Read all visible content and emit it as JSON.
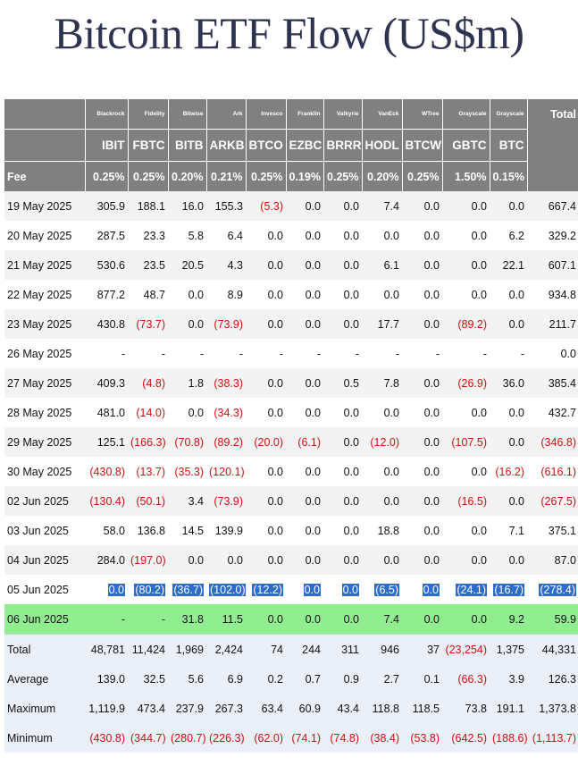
{
  "page_title": "Bitcoin ETF Flow (US$m)",
  "table": {
    "issuers": [
      "Blackrock",
      "Fidelity",
      "Bitwise",
      "Ark",
      "Invesco",
      "Franklin",
      "Valkyrie",
      "VanEck",
      "WTree",
      "Grayscale",
      "Grayscale"
    ],
    "total_label": "Total",
    "tickers": [
      "IBIT",
      "FBTC",
      "BITB",
      "ARKB",
      "BTCO",
      "EZBC",
      "BRRR",
      "HODL",
      "BTCW",
      "GBTC",
      "BTC"
    ],
    "fee_label": "Fee",
    "fees": [
      "0.25%",
      "0.25%",
      "0.20%",
      "0.21%",
      "0.25%",
      "0.19%",
      "0.25%",
      "0.20%",
      "0.25%",
      "1.50%",
      "0.15%"
    ],
    "rows": [
      {
        "date": "19 May 2025",
        "values": [
          "305.9",
          "188.1",
          "16.0",
          "155.3",
          "(5.3)",
          "0.0",
          "0.0",
          "7.4",
          "0.0",
          "0.0",
          "0.0"
        ],
        "total": "667.4"
      },
      {
        "date": "20 May 2025",
        "values": [
          "287.5",
          "23.3",
          "5.8",
          "6.4",
          "0.0",
          "0.0",
          "0.0",
          "0.0",
          "0.0",
          "0.0",
          "6.2"
        ],
        "total": "329.2"
      },
      {
        "date": "21 May 2025",
        "values": [
          "530.6",
          "23.5",
          "20.5",
          "4.3",
          "0.0",
          "0.0",
          "0.0",
          "6.1",
          "0.0",
          "0.0",
          "22.1"
        ],
        "total": "607.1"
      },
      {
        "date": "22 May 2025",
        "values": [
          "877.2",
          "48.7",
          "0.0",
          "8.9",
          "0.0",
          "0.0",
          "0.0",
          "0.0",
          "0.0",
          "0.0",
          "0.0"
        ],
        "total": "934.8"
      },
      {
        "date": "23 May 2025",
        "values": [
          "430.8",
          "(73.7)",
          "0.0",
          "(73.9)",
          "0.0",
          "0.0",
          "0.0",
          "17.7",
          "0.0",
          "(89.2)",
          "0.0"
        ],
        "total": "211.7"
      },
      {
        "date": "26 May 2025",
        "values": [
          "-",
          "-",
          "-",
          "-",
          "-",
          "-",
          "-",
          "-",
          "-",
          "-",
          "-"
        ],
        "total": "0.0"
      },
      {
        "date": "27 May 2025",
        "values": [
          "409.3",
          "(4.8)",
          "1.8",
          "(38.3)",
          "0.0",
          "0.0",
          "0.5",
          "7.8",
          "0.0",
          "(26.9)",
          "36.0"
        ],
        "total": "385.4"
      },
      {
        "date": "28 May 2025",
        "values": [
          "481.0",
          "(14.0)",
          "0.0",
          "(34.3)",
          "0.0",
          "0.0",
          "0.0",
          "0.0",
          "0.0",
          "0.0",
          "0.0"
        ],
        "total": "432.7"
      },
      {
        "date": "29 May 2025",
        "values": [
          "125.1",
          "(166.3)",
          "(70.8)",
          "(89.2)",
          "(20.0)",
          "(6.1)",
          "0.0",
          "(12.0)",
          "0.0",
          "(107.5)",
          "0.0"
        ],
        "total": "(346.8)"
      },
      {
        "date": "30 May 2025",
        "values": [
          "(430.8)",
          "(13.7)",
          "(35.3)",
          "(120.1)",
          "0.0",
          "0.0",
          "0.0",
          "0.0",
          "0.0",
          "0.0",
          "(16.2)"
        ],
        "total": "(616.1)"
      },
      {
        "date": "02 Jun 2025",
        "values": [
          "(130.4)",
          "(50.1)",
          "3.4",
          "(73.9)",
          "0.0",
          "0.0",
          "0.0",
          "0.0",
          "0.0",
          "(16.5)",
          "0.0"
        ],
        "total": "(267.5)"
      },
      {
        "date": "03 Jun 2025",
        "values": [
          "58.0",
          "136.8",
          "14.5",
          "139.9",
          "0.0",
          "0.0",
          "0.0",
          "18.8",
          "0.0",
          "0.0",
          "7.1"
        ],
        "total": "375.1"
      },
      {
        "date": "04 Jun 2025",
        "values": [
          "284.0",
          "(197.0)",
          "0.0",
          "0.0",
          "0.0",
          "0.0",
          "0.0",
          "0.0",
          "0.0",
          "0.0",
          "0.0"
        ],
        "total": "87.0"
      },
      {
        "date": "05 Jun 2025",
        "values": [
          "0.0",
          "(80.2)",
          "(36.7)",
          "(102.0)",
          "(12.2)",
          "0.0",
          "0.0",
          "(6.5)",
          "0.0",
          "(24.1)",
          "(16.7)"
        ],
        "total": "(278.4)",
        "selected": true
      },
      {
        "date": "06 Jun 2025",
        "values": [
          "-",
          "-",
          "31.8",
          "11.5",
          "0.0",
          "0.0",
          "0.0",
          "7.4",
          "0.0",
          "0.0",
          "9.2"
        ],
        "total": "59.9",
        "highlight": "#90ee90"
      }
    ],
    "summary": [
      {
        "label": "Total",
        "values": [
          "48,781",
          "11,424",
          "1,969",
          "2,424",
          "74",
          "244",
          "311",
          "946",
          "37",
          "(23,254)",
          "1,375"
        ],
        "total": "44,331"
      },
      {
        "label": "Average",
        "values": [
          "139.0",
          "32.5",
          "5.6",
          "6.9",
          "0.2",
          "0.7",
          "0.9",
          "2.7",
          "0.1",
          "(66.3)",
          "3.9"
        ],
        "total": "126.3"
      },
      {
        "label": "Maximum",
        "values": [
          "1,119.9",
          "473.4",
          "237.9",
          "267.3",
          "63.4",
          "60.9",
          "43.4",
          "118.8",
          "118.5",
          "73.8",
          "191.1"
        ],
        "total": "1,373.8"
      },
      {
        "label": "Minimum",
        "values": [
          "(430.8)",
          "(344.7)",
          "(280.7)",
          "(226.3)",
          "(62.0)",
          "(74.1)",
          "(74.8)",
          "(38.4)",
          "(53.8)",
          "(642.5)",
          "(188.6)"
        ],
        "total": "(1,113.7)"
      }
    ]
  },
  "colors": {
    "header_bg": "#808080",
    "negative": "#d01010",
    "selection": "#2f6bc8",
    "latest_row": "#90ee90",
    "summary_bg": "#eaeff8",
    "title": "#2e3350"
  }
}
